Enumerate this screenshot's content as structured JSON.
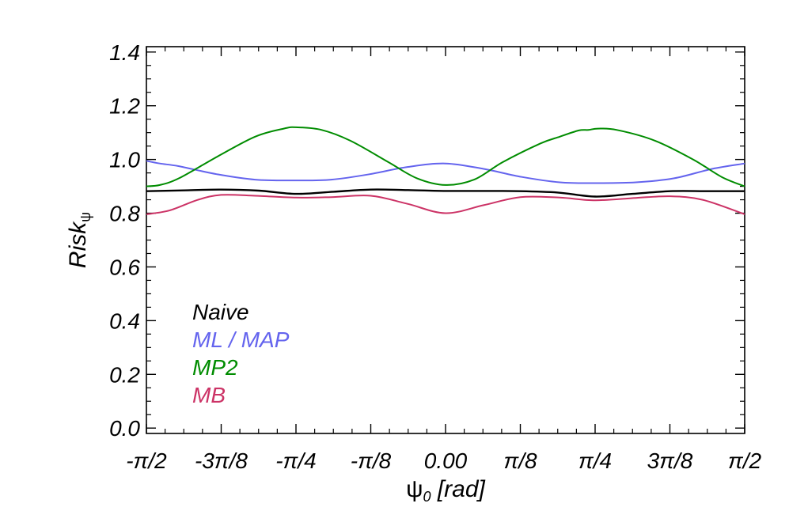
{
  "chart_data": {
    "type": "line",
    "xlabel_symbol": "ψ",
    "xlabel_sub": "0",
    "xlabel_unit": " [rad]",
    "ylabel_main": "Risk",
    "ylabel_sub": "ψ",
    "xlim": [
      -1.5708,
      1.5708
    ],
    "ylim": [
      -0.02,
      1.42
    ],
    "x_ticks": [
      {
        "value": -1.5708,
        "label": "-π/2"
      },
      {
        "value": -1.1781,
        "label": "-3π/8"
      },
      {
        "value": -0.7854,
        "label": "-π/4"
      },
      {
        "value": -0.3927,
        "label": "-π/8"
      },
      {
        "value": 0.0,
        "label": "0.00"
      },
      {
        "value": 0.3927,
        "label": "π/8"
      },
      {
        "value": 0.7854,
        "label": "π/4"
      },
      {
        "value": 1.1781,
        "label": "3π/8"
      },
      {
        "value": 1.5708,
        "label": "π/2"
      }
    ],
    "y_ticks": [
      {
        "value": 0.0,
        "label": "0.0"
      },
      {
        "value": 0.2,
        "label": "0.2"
      },
      {
        "value": 0.4,
        "label": "0.4"
      },
      {
        "value": 0.6,
        "label": "0.6"
      },
      {
        "value": 0.8,
        "label": "0.8"
      },
      {
        "value": 1.0,
        "label": "1.0"
      },
      {
        "value": 1.2,
        "label": "1.2"
      },
      {
        "value": 1.4,
        "label": "1.4"
      }
    ],
    "grid": false,
    "legend_position": "bottom-left",
    "series": [
      {
        "name": "Naive",
        "color": "#000000",
        "x": [
          -1.5708,
          -1.3744,
          -1.1781,
          -0.9817,
          -0.7854,
          -0.589,
          -0.3927,
          -0.1963,
          0.0,
          0.1963,
          0.3927,
          0.589,
          0.7854,
          0.9817,
          1.1781,
          1.3744,
          1.5708
        ],
        "y": [
          0.882,
          0.885,
          0.888,
          0.884,
          0.872,
          0.88,
          0.888,
          0.886,
          0.883,
          0.883,
          0.882,
          0.877,
          0.862,
          0.872,
          0.882,
          0.882,
          0.882
        ]
      },
      {
        "name": "ML / MAP",
        "color": "#6464ee",
        "x": [
          -1.5708,
          -1.5,
          -1.4,
          -1.2,
          -1.0,
          -0.7854,
          -0.6,
          -0.4,
          -0.2,
          0.0,
          0.2,
          0.4,
          0.6,
          0.7854,
          1.0,
          1.2,
          1.4,
          1.5708
        ],
        "y": [
          0.995,
          0.985,
          0.975,
          0.945,
          0.925,
          0.922,
          0.925,
          0.945,
          0.972,
          0.985,
          0.965,
          0.935,
          0.915,
          0.912,
          0.915,
          0.93,
          0.965,
          0.985
        ]
      },
      {
        "name": "MP2",
        "color": "#008c00",
        "x": [
          -1.5708,
          -1.5,
          -1.4,
          -1.2,
          -1.0,
          -0.85,
          -0.7854,
          -0.65,
          -0.5,
          -0.3,
          -0.15,
          0.0,
          0.15,
          0.3,
          0.5,
          0.6,
          0.7,
          0.75,
          0.8,
          0.9,
          1.1,
          1.3,
          1.45,
          1.5708
        ],
        "y": [
          0.9,
          0.905,
          0.93,
          1.01,
          1.085,
          1.115,
          1.12,
          1.11,
          1.07,
          0.99,
          0.93,
          0.905,
          0.925,
          0.99,
          1.06,
          1.085,
          1.108,
          1.11,
          1.115,
          1.11,
          1.07,
          1.0,
          0.935,
          0.9
        ]
      },
      {
        "name": "MB",
        "color": "#cc3366",
        "x": [
          -1.5708,
          -1.45,
          -1.3,
          -1.1781,
          -1.0,
          -0.7854,
          -0.6,
          -0.3927,
          -0.2,
          0.0,
          0.2,
          0.3927,
          0.6,
          0.7854,
          1.0,
          1.1781,
          1.35,
          1.5708
        ],
        "y": [
          0.796,
          0.81,
          0.85,
          0.868,
          0.865,
          0.858,
          0.86,
          0.865,
          0.835,
          0.8,
          0.83,
          0.86,
          0.858,
          0.848,
          0.857,
          0.863,
          0.85,
          0.796
        ]
      }
    ]
  }
}
